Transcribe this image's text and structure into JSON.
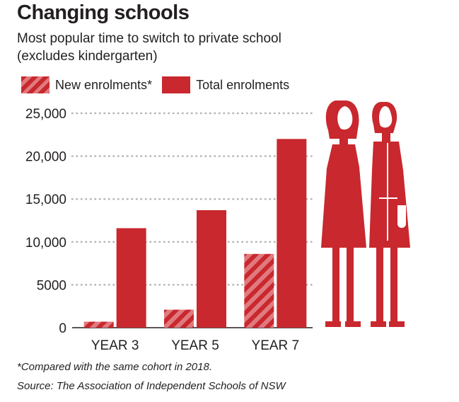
{
  "header": {
    "title": "Changing schools",
    "subtitle_line1": "Most popular time to switch to private school",
    "subtitle_line2": "(excludes kindergarten)"
  },
  "legend": {
    "new_label": "New enrolments*",
    "total_label": "Total enrolments"
  },
  "footer": {
    "footnote": "*Compared with the same cohort in 2018.",
    "source": "Source: The Association of Independent Schools of NSW"
  },
  "colors": {
    "bar": "#c8282e",
    "stripe_light": "#e07a7e",
    "grid": "#b3b3b3",
    "axis": "#231f20"
  },
  "chart_data": {
    "type": "bar",
    "categories": [
      "YEAR 3",
      "YEAR 5",
      "YEAR 7"
    ],
    "series": [
      {
        "name": "New enrolments*",
        "values": [
          700,
          2100,
          8600
        ]
      },
      {
        "name": "Total enrolments",
        "values": [
          11600,
          13700,
          22000
        ]
      }
    ],
    "ylim": [
      0,
      25000
    ],
    "yticks": [
      0,
      5000,
      10000,
      15000,
      20000,
      25000
    ],
    "ytick_labels": [
      "0",
      "5000",
      "10,000",
      "15,000",
      "20,000",
      "25,000"
    ],
    "grid": true,
    "legend_position": "top-left"
  }
}
